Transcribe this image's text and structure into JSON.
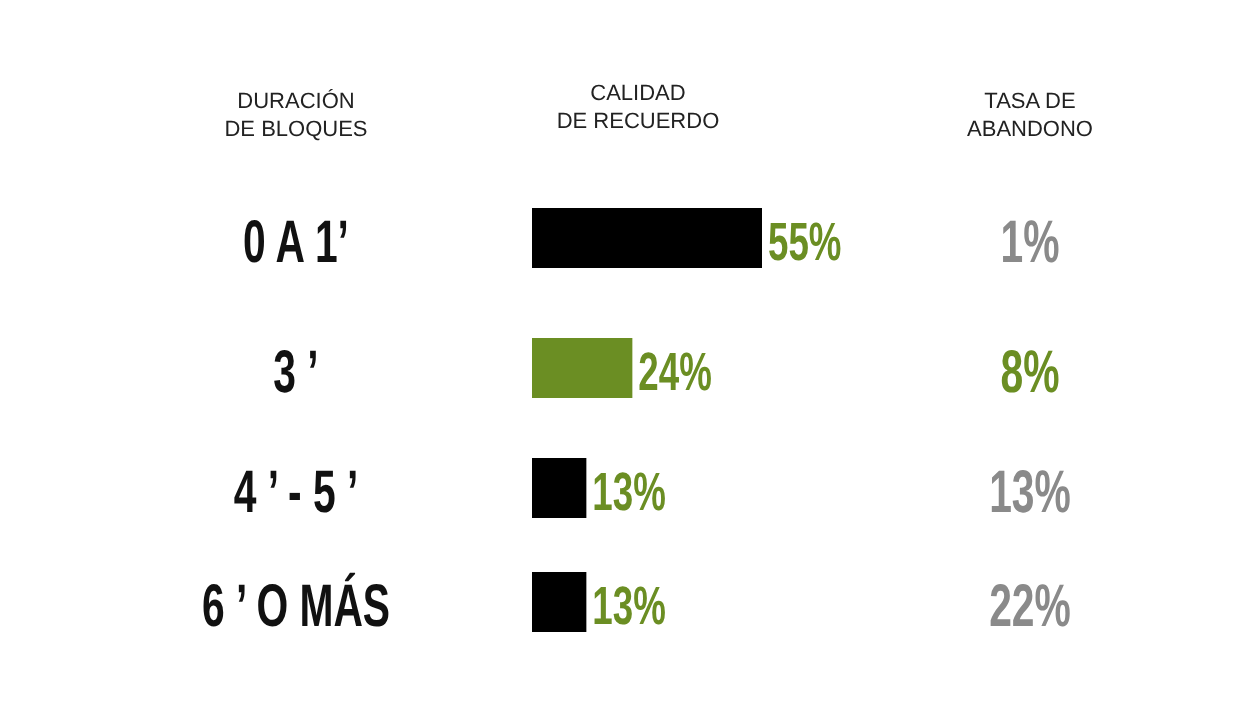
{
  "chart_data": {
    "type": "bar",
    "orientation": "horizontal",
    "ylabel": "DURACIÓN\nDE BLOQUES",
    "xlabel": "CALIDAD\nDE RECUERDO",
    "categories": [
      "0 A 1’",
      "3 ’",
      "4 ’ - 5 ’",
      "6 ’ O MÁS"
    ],
    "values": [
      55,
      24,
      13,
      13
    ],
    "colors": [
      "#000000",
      "#6b8e23",
      "#000000",
      "#000000"
    ],
    "value_labels": [
      "55%",
      "24%",
      "13%",
      "13%"
    ],
    "annotations": [
      "TASA DE\nABANDONO",
      "1%",
      "8%",
      "13%",
      "22%"
    ]
  }
}
